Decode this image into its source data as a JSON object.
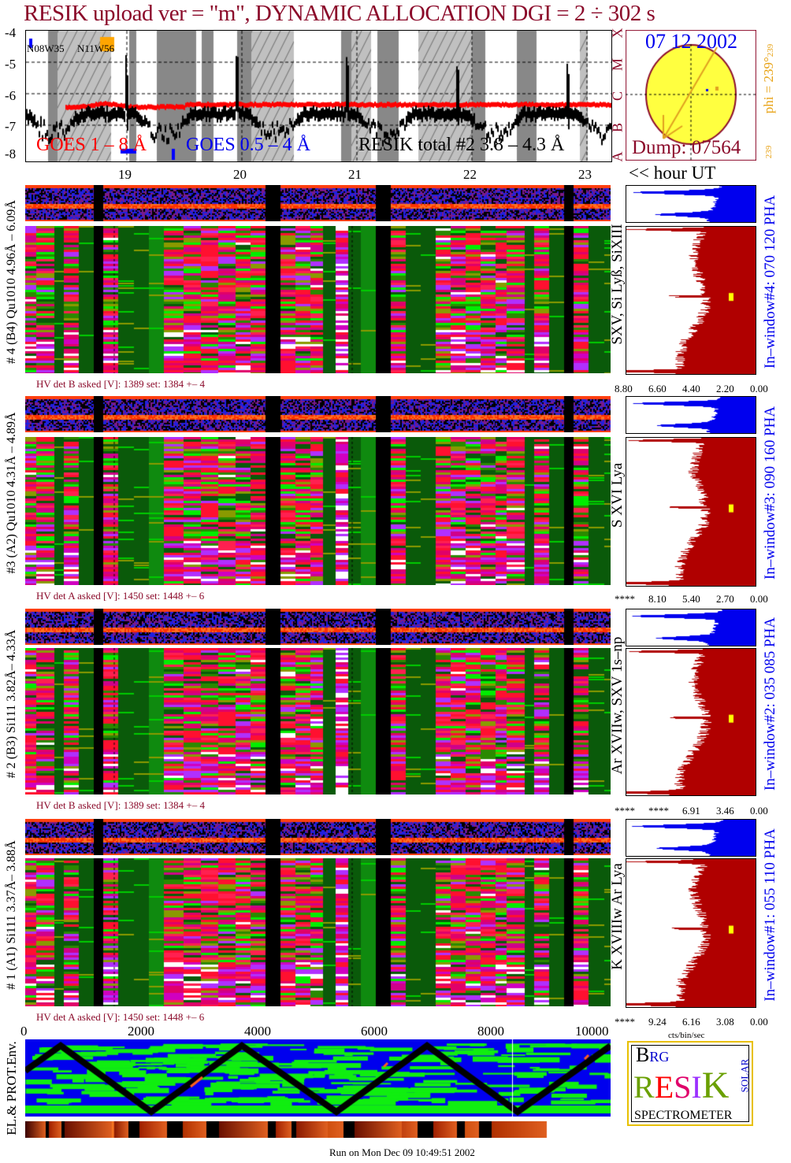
{
  "title": "RESIK upload ver = \"m\", DYNAMIC ALLOCATION  DGI =   2 ÷ 302 s",
  "goes_plot": {
    "y_ticks": [
      "-4",
      "-5",
      "-6",
      "-7",
      "-8"
    ],
    "class_letters": [
      "X",
      "M",
      "C",
      "B",
      "A"
    ],
    "region_labels": [
      "N08W35",
      "N11W56"
    ],
    "legend": {
      "goes_long": "GOES 1 – 8 Å",
      "goes_short": "GOES 0.5 – 4 Å",
      "resik_total": "RESIK total #2  3.8 – 4.3 Å"
    },
    "colors": {
      "goes_long": "#ff0000",
      "goes_short": "#0000ff",
      "resik": "#000000"
    }
  },
  "sun": {
    "date": "07 12 2002",
    "dump": "Dump: 07564",
    "phi": "phi = 239°",
    "phi_small": "239",
    "phi_bottom": "239"
  },
  "hour_axis": {
    "ticks": [
      "19",
      "20",
      "21",
      "22",
      "23"
    ],
    "label": "<< hour UT"
  },
  "panels": [
    {
      "side_label": "# 4 (B4) Qu1010 4.96Å – 6.09Å",
      "hv": "HV det B asked [V]:  1389 set:  1384  +–    4",
      "lines": "SXV, Si Lyß, SiXIII",
      "window": "In–window#4:  070 120 PHA",
      "x_ticks": [
        "8.80",
        "6.60",
        "4.40",
        "2.20",
        "0.00"
      ]
    },
    {
      "side_label": "#3 (A2) Qu1010  4.31Å – 4.89Å",
      "hv": "HV det A asked [V]:  1450 set:  1448  +–    6",
      "lines": "S XVI Lya",
      "window": "In–window#3:  090 160 PHA",
      "x_ticks": [
        "****",
        "8.10",
        "5.40",
        "2.70",
        "0.00"
      ]
    },
    {
      "side_label": "# 2 (B3) Si111  3.82Å– 4.33Å",
      "hv": "HV det B asked [V]:  1389 set:  1384  +–    4",
      "lines": "Ar XVIIw,  SXV  1s–np",
      "window": "In–window#2:  035 085 PHA",
      "x_ticks": [
        "****",
        "****",
        "6.91",
        "3.46",
        "0.00"
      ]
    },
    {
      "side_label": "# 1 (A1) Si111  3.37Å– 3.88Å",
      "hv": "HV det A asked [V]:  1450 set:  1448  +–    6",
      "lines": "K XVIIIw  Ar Lya",
      "window": "In–window#1:  055 110 PHA",
      "x_ticks": [
        "****",
        "9.24",
        "6.16",
        "3.08",
        "0.00"
      ]
    }
  ],
  "bin_axis": {
    "ticks": [
      "0",
      "2000",
      "4000",
      "6000",
      "8000",
      "10000"
    ],
    "unit": "cts/bin/sec"
  },
  "env": {
    "label": "EL.& PROT.Env."
  },
  "logo": {
    "top": "BRG",
    "letters": "RESIK",
    "solar": "SOLAR",
    "caption": "SPECTROMETER"
  },
  "footer": "Run on Mon Dec 09 10:49:51 2002"
}
